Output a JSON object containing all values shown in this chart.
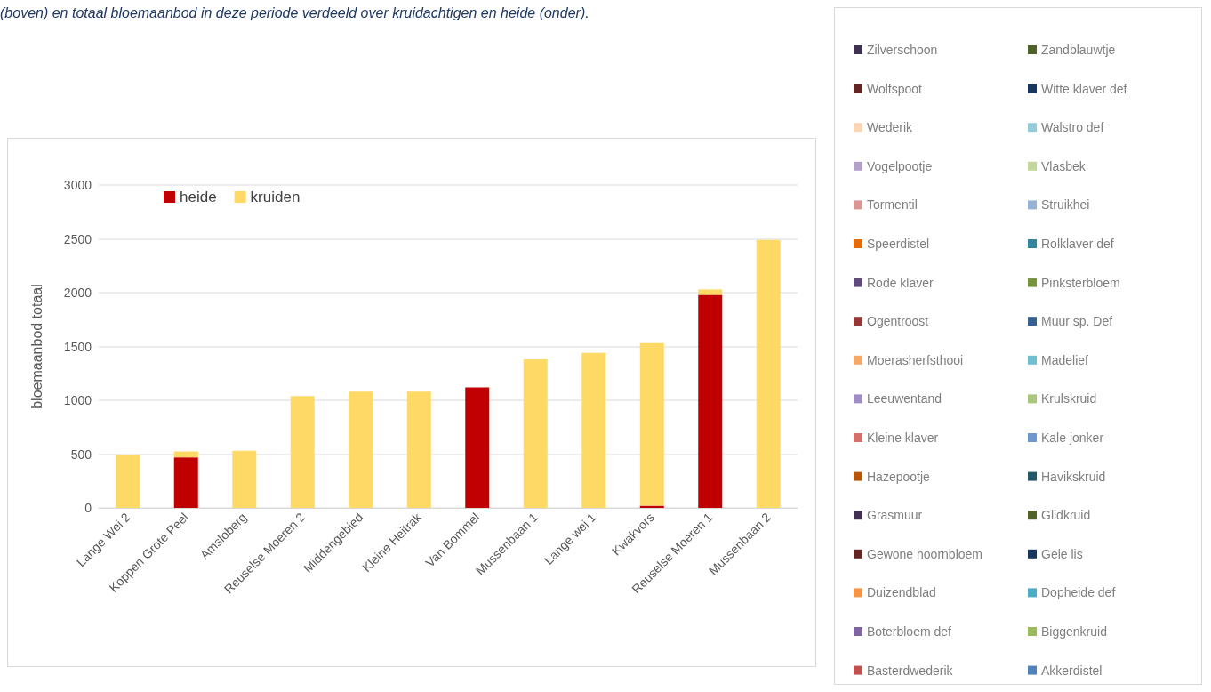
{
  "chart_data": [
    {
      "type": "bar",
      "title": "(boven) en totaal bloemaanbod in deze periode verdeeld over kruidachtigen en heide (onder).",
      "ylabel": "bloemaanbod totaal",
      "stacked": true,
      "categories": [
        "Lange Wei 2",
        "Koppen Grote Peel",
        "Amsloberg",
        "Reuselse Moeren 2",
        "Middengebied",
        "Kleine Heitrak",
        "Van Bommel",
        "Mussenbaan 1",
        "Lange wei 1",
        "Kwakvors",
        "Reuselse Moeren 1",
        "Mussenbaan 2"
      ],
      "series": [
        {
          "name": "heide",
          "color": "#c00000",
          "values": [
            0,
            470,
            0,
            0,
            0,
            0,
            1120,
            0,
            0,
            20,
            1980,
            0
          ]
        },
        {
          "name": "kruiden",
          "color": "#ffd966",
          "values": [
            490,
            55,
            530,
            1040,
            1080,
            1080,
            0,
            1380,
            1440,
            1510,
            50,
            2490
          ]
        }
      ],
      "ylim": [
        0,
        3000
      ],
      "yticks": [
        0,
        500,
        1000,
        1500,
        2000,
        2500,
        3000
      ],
      "grid": "y",
      "legend": "top left"
    },
    {
      "type": "other",
      "legend": "right",
      "series": [
        {
          "name": "Zilverschoon",
          "color": "#3f3151"
        },
        {
          "name": "Zandblauwtje",
          "color": "#4f6228"
        },
        {
          "name": "Wolfspoot",
          "color": "#632523"
        },
        {
          "name": "Witte klaver def",
          "color": "#17375e"
        },
        {
          "name": "Wederik",
          "color": "#fcd5b5"
        },
        {
          "name": "Walstro def",
          "color": "#93cddd"
        },
        {
          "name": "Vogelpootje",
          "color": "#b3a2c7"
        },
        {
          "name": "Vlasbek",
          "color": "#c3d69b"
        },
        {
          "name": "Tormentil",
          "color": "#d99694"
        },
        {
          "name": "Struikhei",
          "color": "#95b3d7"
        },
        {
          "name": "Speerdistel",
          "color": "#e46c0a"
        },
        {
          "name": "Rolklaver def",
          "color": "#31859c"
        },
        {
          "name": "Rode klaver",
          "color": "#604a7b"
        },
        {
          "name": "Pinksterbloem",
          "color": "#77933c"
        },
        {
          "name": "Ogentroost",
          "color": "#953735"
        },
        {
          "name": "Muur sp. Def",
          "color": "#376092"
        },
        {
          "name": "Moerasherfsthooi",
          "color": "#f6a869"
        },
        {
          "name": "Madelief",
          "color": "#6fbfd0"
        },
        {
          "name": "Leeuwentand",
          "color": "#a08cc4"
        },
        {
          "name": "Krulskruid",
          "color": "#a9c77a"
        },
        {
          "name": "Kleine klaver",
          "color": "#d46f6c"
        },
        {
          "name": "Kale jonker",
          "color": "#6f97cf"
        },
        {
          "name": "Hazepootje",
          "color": "#b65708"
        },
        {
          "name": "Havikskruid",
          "color": "#215968"
        },
        {
          "name": "Grasmuur",
          "color": "#403152"
        },
        {
          "name": "Glidkruid",
          "color": "#4f6228"
        },
        {
          "name": "Gewone hoornbloem",
          "color": "#632523"
        },
        {
          "name": "Gele lis",
          "color": "#17375e"
        },
        {
          "name": "Duizendblad",
          "color": "#f79646"
        },
        {
          "name": "Dopheide def",
          "color": "#4bacc6"
        },
        {
          "name": "Boterbloem def",
          "color": "#8064a2"
        },
        {
          "name": "Biggenkruid",
          "color": "#9bbb59"
        },
        {
          "name": "Basterdwederik",
          "color": "#c0504d"
        },
        {
          "name": "Akkerdistel",
          "color": "#4f81bd"
        }
      ]
    }
  ]
}
